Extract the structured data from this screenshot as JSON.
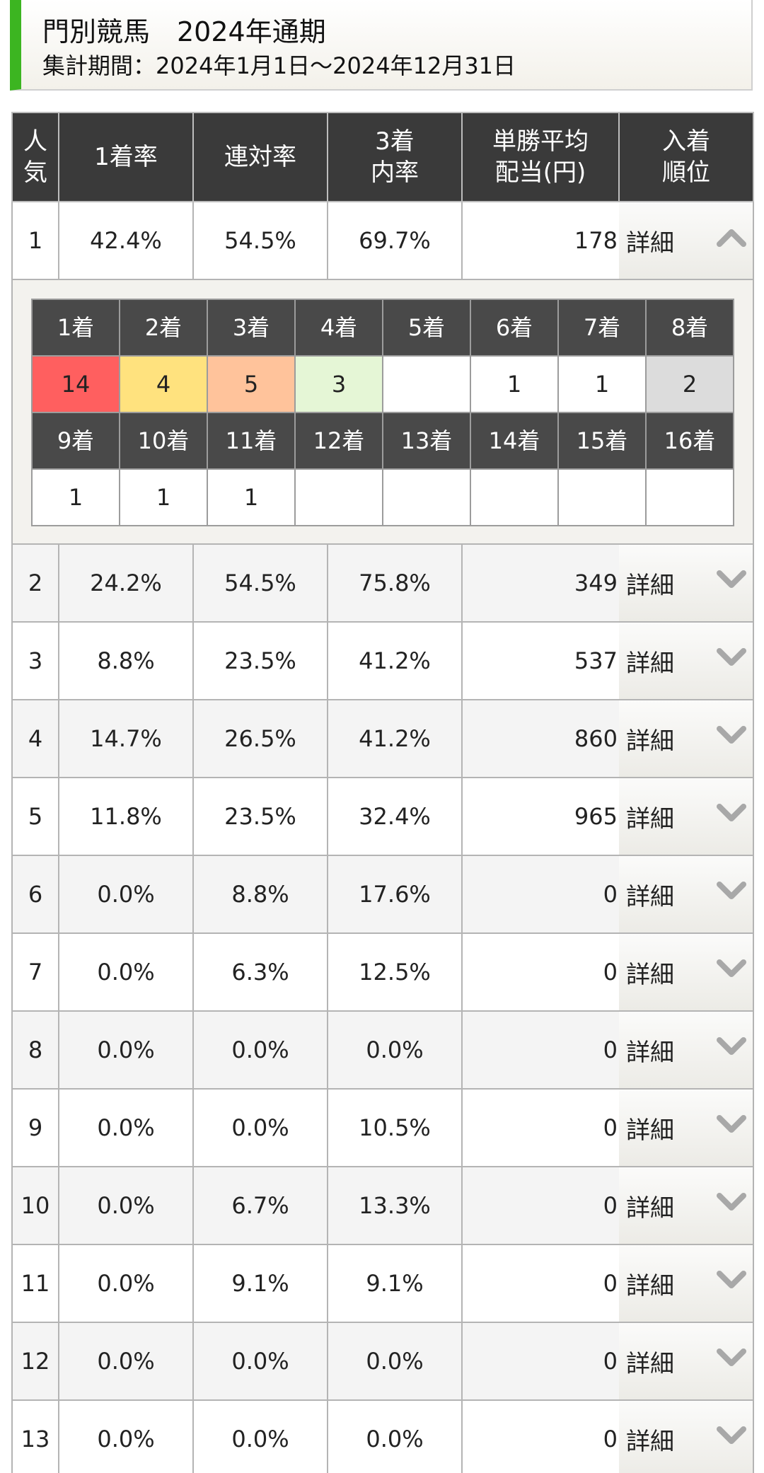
{
  "header": {
    "title": "門別競馬　2024年通期",
    "period": "集計期間：2024年1月1日〜2024年12月31日"
  },
  "columns": [
    "人気",
    "1着率",
    "連対率",
    "3着内率",
    "単勝平均配当(円)",
    "入着順位"
  ],
  "column_lines": {
    "popularity": [
      "人",
      "気"
    ],
    "win": "1着率",
    "quinella": "連対率",
    "top3": [
      "3着",
      "内率"
    ],
    "payout": [
      "単勝平均",
      "配当(円)"
    ],
    "rank": [
      "入着",
      "順位"
    ]
  },
  "colors": {
    "accent_green": "#3cb521",
    "rank1": "#ff5f5f",
    "rank2": "#ffe27e",
    "rank3": "#ffc39b",
    "rank4": "#e5f6d6",
    "rank8": "#dcdcdc"
  },
  "rows": [
    {
      "pop": "1",
      "win": "42.4%",
      "quinella": "54.5%",
      "top3": "69.7%",
      "payout": "178",
      "detail": "詳細",
      "expanded": true
    },
    {
      "pop": "2",
      "win": "24.2%",
      "quinella": "54.5%",
      "top3": "75.8%",
      "payout": "349",
      "detail": "詳細"
    },
    {
      "pop": "3",
      "win": "8.8%",
      "quinella": "23.5%",
      "top3": "41.2%",
      "payout": "537",
      "detail": "詳細"
    },
    {
      "pop": "4",
      "win": "14.7%",
      "quinella": "26.5%",
      "top3": "41.2%",
      "payout": "860",
      "detail": "詳細"
    },
    {
      "pop": "5",
      "win": "11.8%",
      "quinella": "23.5%",
      "top3": "32.4%",
      "payout": "965",
      "detail": "詳細"
    },
    {
      "pop": "6",
      "win": "0.0%",
      "quinella": "8.8%",
      "top3": "17.6%",
      "payout": "0",
      "detail": "詳細"
    },
    {
      "pop": "7",
      "win": "0.0%",
      "quinella": "6.3%",
      "top3": "12.5%",
      "payout": "0",
      "detail": "詳細"
    },
    {
      "pop": "8",
      "win": "0.0%",
      "quinella": "0.0%",
      "top3": "0.0%",
      "payout": "0",
      "detail": "詳細"
    },
    {
      "pop": "9",
      "win": "0.0%",
      "quinella": "0.0%",
      "top3": "10.5%",
      "payout": "0",
      "detail": "詳細"
    },
    {
      "pop": "10",
      "win": "0.0%",
      "quinella": "6.7%",
      "top3": "13.3%",
      "payout": "0",
      "detail": "詳細"
    },
    {
      "pop": "11",
      "win": "0.0%",
      "quinella": "9.1%",
      "top3": "9.1%",
      "payout": "0",
      "detail": "詳細"
    },
    {
      "pop": "12",
      "win": "0.0%",
      "quinella": "0.0%",
      "top3": "0.0%",
      "payout": "0",
      "detail": "詳細"
    },
    {
      "pop": "13",
      "win": "0.0%",
      "quinella": "0.0%",
      "top3": "0.0%",
      "payout": "0",
      "detail": "詳細"
    }
  ],
  "finish_breakdown": {
    "headers_1": [
      "1着",
      "2着",
      "3着",
      "4着",
      "5着",
      "6着",
      "7着",
      "8着"
    ],
    "values_1": [
      "14",
      "4",
      "5",
      "3",
      "",
      "1",
      "1",
      "2"
    ],
    "headers_2": [
      "9着",
      "10着",
      "11着",
      "12着",
      "13着",
      "14着",
      "15着",
      "16着"
    ],
    "values_2": [
      "1",
      "1",
      "1",
      "",
      "",
      "",
      "",
      ""
    ]
  }
}
